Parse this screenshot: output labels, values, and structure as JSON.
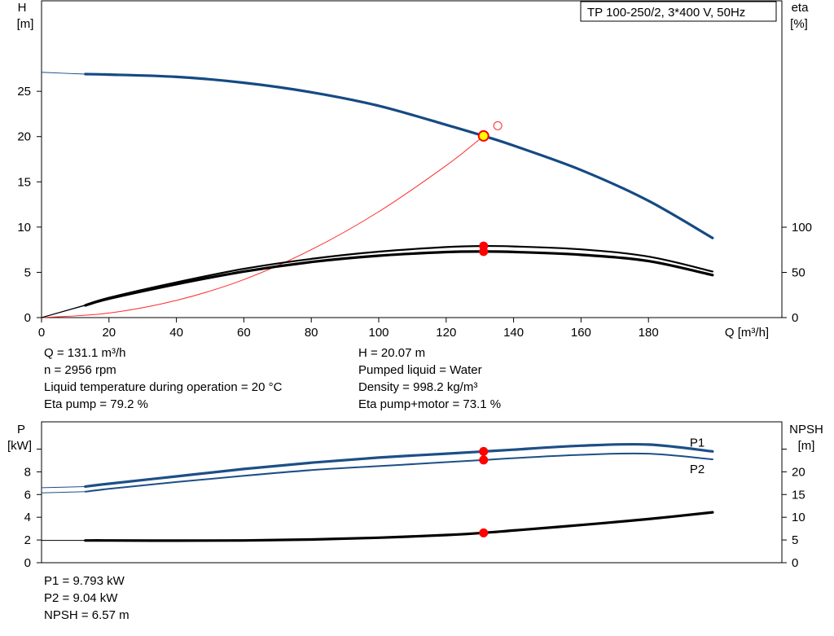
{
  "pump_label": "TP 100-250/2, 3*400 V, 50Hz",
  "colors": {
    "head_curve": "#154a83",
    "power_curve": "#1d4f86",
    "npsh_curve": "#000000",
    "eta_curves": "#000000",
    "system_curve": "#ff2b2b",
    "duty_point_fill": "#ffff00",
    "marker": "#ff0000"
  },
  "chart_data": [
    {
      "type": "line",
      "title": "",
      "x_label": "Q [m³/h]",
      "y_label_left_top": "H",
      "y_label_left_bottom": "[m]",
      "y_label_right_top": "eta",
      "y_label_right_bottom": "[%]",
      "xlim": [
        0,
        220
      ],
      "ylim_left": [
        0,
        35
      ],
      "ylim_right_eta": [
        0,
        100
      ],
      "x_ticks": [
        0,
        20,
        40,
        60,
        80,
        100,
        120,
        140,
        160,
        180
      ],
      "y_ticks_left": [
        0,
        5,
        10,
        15,
        20,
        25
      ],
      "y_ticks_right": [
        0,
        50,
        100
      ],
      "series": [
        {
          "role": "head",
          "axis": "left",
          "x": [
            0,
            13,
            20,
            40,
            60,
            80,
            100,
            120,
            131.1,
            140,
            160,
            180,
            199
          ],
          "y": [
            27.1,
            26.9,
            26.85,
            26.6,
            25.95,
            24.9,
            23.4,
            21.3,
            20.07,
            19.0,
            16.3,
            12.9,
            8.8
          ]
        },
        {
          "role": "eta_pump",
          "axis": "right",
          "x": [
            0,
            13,
            20,
            40,
            60,
            80,
            100,
            120,
            131.1,
            140,
            160,
            180,
            199
          ],
          "y": [
            0,
            14,
            22,
            39,
            54,
            65,
            73,
            78,
            79.2,
            78.7,
            75.5,
            67.5,
            51
          ]
        },
        {
          "role": "eta_pump_motor",
          "axis": "right",
          "x": [
            0,
            13,
            20,
            40,
            60,
            80,
            100,
            120,
            131.1,
            140,
            160,
            180,
            199
          ],
          "y": [
            0,
            13.5,
            21,
            37,
            51,
            61.5,
            68.5,
            72.5,
            73.1,
            72.6,
            69.5,
            62.5,
            47
          ]
        },
        {
          "role": "system_curve",
          "axis": "left",
          "x": [
            0,
            20,
            40,
            60,
            80,
            100,
            120,
            131.1
          ],
          "y": [
            0,
            0.5,
            1.9,
            4.2,
            7.5,
            11.7,
            16.8,
            20.07
          ]
        }
      ],
      "duty_point": {
        "x": 131.1,
        "y": 20.07
      },
      "open_marker": {
        "x": 135.3,
        "y": 21.2
      },
      "eta_markers": [
        {
          "x": 131.1,
          "y": 79.2
        },
        {
          "x": 131.1,
          "y": 73.1
        }
      ]
    },
    {
      "type": "line",
      "title": "",
      "y_label_left_top": "P",
      "y_label_left_bottom": "[kW]",
      "y_label_right_top": "NPSH",
      "y_label_right_bottom": "[m]",
      "xlim": [
        0,
        220
      ],
      "ylim_left": [
        0,
        12.4
      ],
      "ylim_right_npsh": [
        0,
        31
      ],
      "y_ticks_left": [
        0,
        2,
        4,
        6,
        8
      ],
      "y_ticks_right": [
        0,
        5,
        10,
        15,
        20
      ],
      "series": [
        {
          "name": "P1",
          "role": "p1",
          "axis": "left",
          "x": [
            0,
            13,
            20,
            40,
            60,
            80,
            100,
            120,
            131.1,
            140,
            160,
            180,
            199
          ],
          "y": [
            6.6,
            6.7,
            6.95,
            7.6,
            8.25,
            8.8,
            9.25,
            9.6,
            9.793,
            9.95,
            10.3,
            10.4,
            9.8
          ]
        },
        {
          "name": "P2",
          "role": "p2",
          "axis": "left",
          "x": [
            0,
            13,
            20,
            40,
            60,
            80,
            100,
            120,
            131.1,
            140,
            160,
            180,
            199
          ],
          "y": [
            6.15,
            6.25,
            6.5,
            7.1,
            7.65,
            8.15,
            8.5,
            8.85,
            9.04,
            9.2,
            9.5,
            9.6,
            9.1
          ]
        },
        {
          "role": "npsh",
          "axis": "right",
          "x": [
            13,
            20,
            40,
            60,
            80,
            100,
            120,
            131.1,
            140,
            160,
            180,
            199
          ],
          "y": [
            4.9,
            4.9,
            4.85,
            4.9,
            5.1,
            5.5,
            6.1,
            6.57,
            7.1,
            8.3,
            9.6,
            11.1
          ]
        }
      ],
      "markers": [
        {
          "x": 131.1,
          "y": 9.793
        },
        {
          "x": 131.1,
          "y": 9.04
        }
      ],
      "npsh_marker": {
        "x": 131.1,
        "y": 6.57
      }
    }
  ],
  "info_top_left": [
    "Q = 131.1 m³/h",
    "n = 2956 rpm",
    "Liquid temperature during operation = 20 °C",
    "Eta pump = 79.2 %"
  ],
  "info_top_right": [
    "H = 20.07 m",
    "Pumped liquid = Water",
    "Density = 998.2 kg/m³",
    "Eta pump+motor = 73.1 %"
  ],
  "info_bottom": [
    "P1 = 9.793 kW",
    "P2 = 9.04 kW",
    "NPSH = 6.57 m"
  ]
}
